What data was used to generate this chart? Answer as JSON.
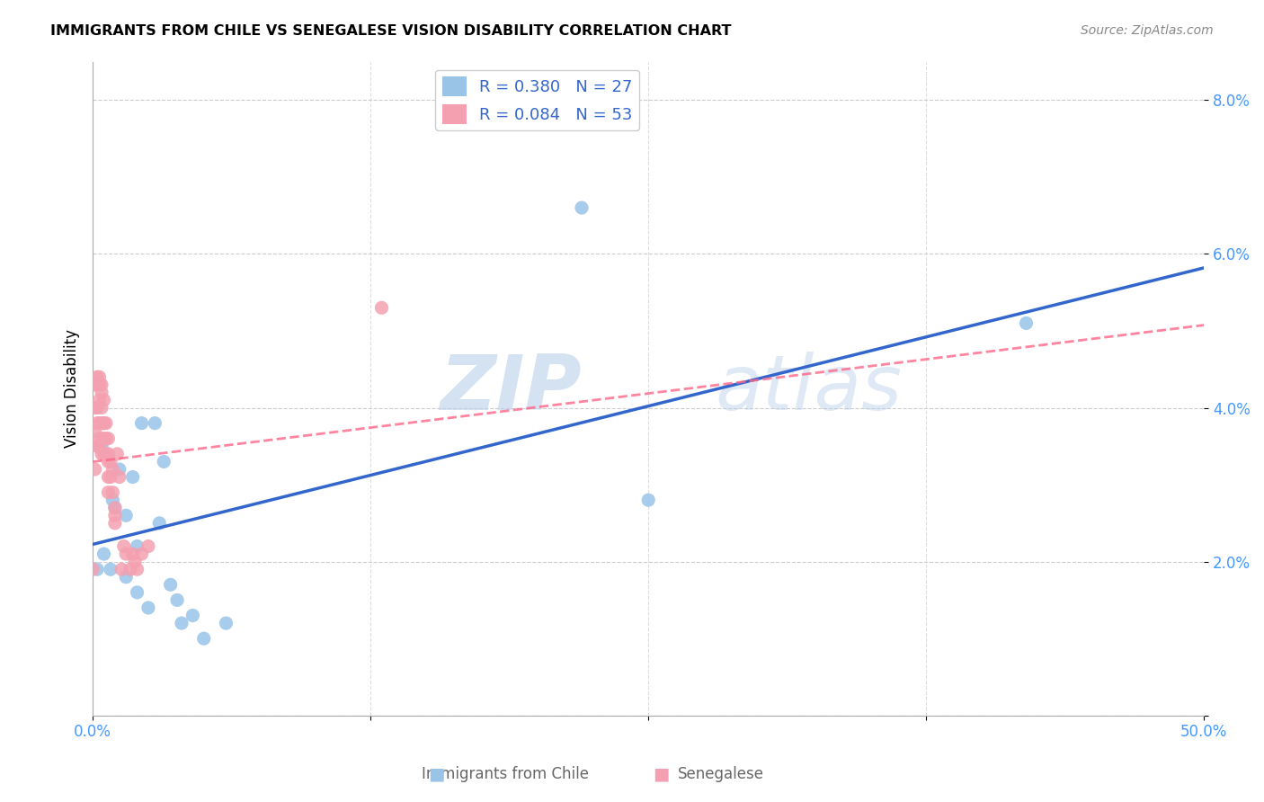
{
  "title": "IMMIGRANTS FROM CHILE VS SENEGALESE VISION DISABILITY CORRELATION CHART",
  "source": "Source: ZipAtlas.com",
  "ylabel": "Vision Disability",
  "ylim": [
    0.0,
    0.085
  ],
  "xlim": [
    0.0,
    0.5
  ],
  "yticks": [
    0.0,
    0.02,
    0.04,
    0.06,
    0.08
  ],
  "ytick_labels": [
    "",
    "2.0%",
    "4.0%",
    "6.0%",
    "8.0%"
  ],
  "xticks": [
    0.0,
    0.125,
    0.25,
    0.375,
    0.5
  ],
  "xtick_labels": [
    "0.0%",
    "",
    "",
    "",
    "50.0%"
  ],
  "watermark_zip": "ZIP",
  "watermark_atlas": "atlas",
  "blue_color": "#99C4E8",
  "pink_color": "#F4A0B0",
  "line_blue": "#3366CC",
  "line_pink": "#FF6688",
  "legend_blue_text": "R = 0.380   N = 27",
  "legend_pink_text": "R = 0.084   N = 53",
  "bottom_label1": "Immigrants from Chile",
  "bottom_label2": "Senegalese",
  "chile_points_x": [
    0.002,
    0.004,
    0.005,
    0.005,
    0.008,
    0.009,
    0.01,
    0.012,
    0.015,
    0.015,
    0.018,
    0.02,
    0.02,
    0.022,
    0.025,
    0.028,
    0.03,
    0.032,
    0.035,
    0.038,
    0.04,
    0.045,
    0.05,
    0.06,
    0.22,
    0.25,
    0.42
  ],
  "chile_points_y": [
    0.019,
    0.035,
    0.038,
    0.021,
    0.019,
    0.028,
    0.027,
    0.032,
    0.026,
    0.018,
    0.031,
    0.022,
    0.016,
    0.038,
    0.014,
    0.038,
    0.025,
    0.033,
    0.017,
    0.015,
    0.012,
    0.013,
    0.01,
    0.012,
    0.066,
    0.028,
    0.051
  ],
  "senegal_points_x": [
    0.0,
    0.001,
    0.001,
    0.001,
    0.001,
    0.002,
    0.002,
    0.002,
    0.002,
    0.002,
    0.003,
    0.003,
    0.003,
    0.003,
    0.003,
    0.003,
    0.004,
    0.004,
    0.004,
    0.004,
    0.004,
    0.004,
    0.005,
    0.005,
    0.005,
    0.005,
    0.006,
    0.006,
    0.006,
    0.007,
    0.007,
    0.007,
    0.007,
    0.007,
    0.008,
    0.008,
    0.009,
    0.009,
    0.01,
    0.01,
    0.01,
    0.011,
    0.012,
    0.013,
    0.014,
    0.015,
    0.017,
    0.018,
    0.019,
    0.02,
    0.022,
    0.025,
    0.13
  ],
  "senegal_points_y": [
    0.019,
    0.043,
    0.04,
    0.037,
    0.032,
    0.044,
    0.043,
    0.04,
    0.038,
    0.035,
    0.044,
    0.043,
    0.041,
    0.038,
    0.036,
    0.035,
    0.043,
    0.042,
    0.04,
    0.038,
    0.036,
    0.034,
    0.041,
    0.038,
    0.036,
    0.034,
    0.038,
    0.036,
    0.034,
    0.036,
    0.034,
    0.033,
    0.031,
    0.029,
    0.033,
    0.031,
    0.032,
    0.029,
    0.027,
    0.026,
    0.025,
    0.034,
    0.031,
    0.019,
    0.022,
    0.021,
    0.019,
    0.021,
    0.02,
    0.019,
    0.021,
    0.022,
    0.053
  ]
}
